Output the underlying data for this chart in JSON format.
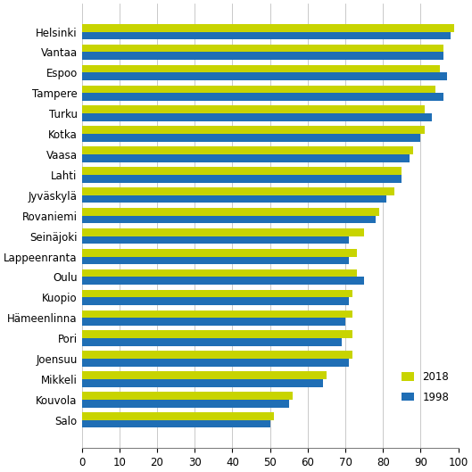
{
  "municipalities": [
    "Helsinki",
    "Vantaa",
    "Espoo",
    "Tampere",
    "Turku",
    "Kotka",
    "Vaasa",
    "Lahti",
    "Jyväskylä",
    "Rovaniemi",
    "Seinäjoki",
    "Lappeenranta",
    "Oulu",
    "Kuopio",
    "Hämeenlinna",
    "Pori",
    "Joensuu",
    "Mikkeli",
    "Kouvola",
    "Salo"
  ],
  "values_2018": [
    99,
    96,
    95,
    94,
    91,
    91,
    88,
    85,
    83,
    79,
    75,
    73,
    73,
    72,
    72,
    72,
    72,
    65,
    56,
    51
  ],
  "values_1998": [
    98,
    96,
    97,
    96,
    93,
    90,
    87,
    85,
    81,
    78,
    71,
    71,
    75,
    71,
    70,
    69,
    71,
    64,
    55,
    50
  ],
  "color_2018": "#c8d400",
  "color_1998": "#1f6eb5",
  "xlim": [
    0,
    100
  ],
  "xticks": [
    0,
    10,
    20,
    30,
    40,
    50,
    60,
    70,
    80,
    90,
    100
  ],
  "legend_labels": [
    "2018",
    "1998"
  ],
  "bar_height": 0.38,
  "background_color": "#ffffff",
  "grid_color": "#c0c0c0"
}
